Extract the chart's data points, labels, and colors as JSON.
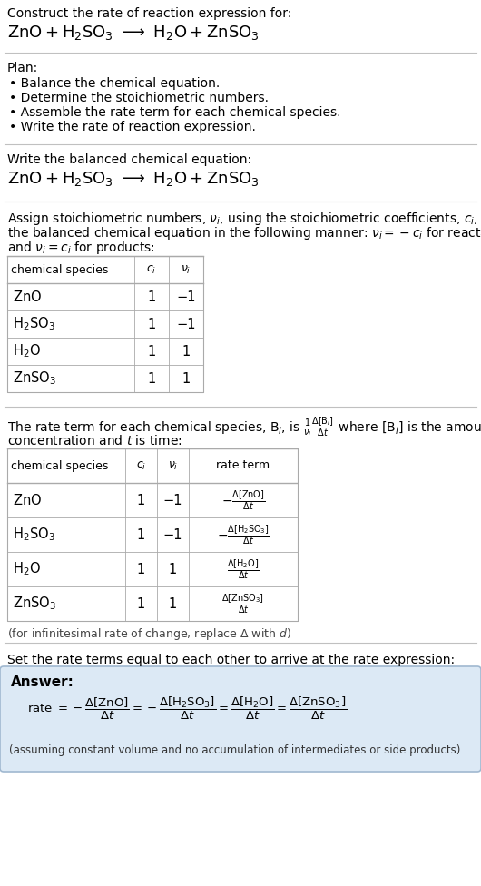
{
  "bg_color": "#ffffff",
  "text_color": "#000000",
  "answer_box_color": "#dce9f5",
  "answer_box_edge": "#a0b8d0",
  "section1_title": "Construct the rate of reaction expression for:",
  "plan_title": "Plan:",
  "plan_items": [
    "• Balance the chemical equation.",
    "• Determine the stoichiometric numbers.",
    "• Assemble the rate term for each chemical species.",
    "• Write the rate of reaction expression."
  ],
  "section2_title": "Write the balanced chemical equation:",
  "section3_intro": [
    "Assign stoichiometric numbers, $\\nu_i$, using the stoichiometric coefficients, $c_i$, from",
    "the balanced chemical equation in the following manner: $\\nu_i = -c_i$ for reactants",
    "and $\\nu_i = c_i$ for products:"
  ],
  "table1_species": [
    "ZnO",
    "H$_2$SO$_3$",
    "H$_2$O",
    "ZnSO$_3$"
  ],
  "table1_ci": [
    "1",
    "1",
    "1",
    "1"
  ],
  "table1_nui": [
    "−1",
    "−1",
    "1",
    "1"
  ],
  "section4_line2": "concentration and $t$ is time:",
  "table2_species": [
    "ZnO",
    "H$_2$SO$_3$",
    "H$_2$O",
    "ZnSO$_3$"
  ],
  "table2_ci": [
    "1",
    "1",
    "1",
    "1"
  ],
  "table2_nui": [
    "−1",
    "−1",
    "1",
    "1"
  ],
  "infinitesimal_note": "(for infinitesimal rate of change, replace Δ with $d$)",
  "section5_title": "Set the rate terms equal to each other to arrive at the rate expression:",
  "answer_label": "Answer:",
  "answer_footnote": "(assuming constant volume and no accumulation of intermediates or side products)"
}
